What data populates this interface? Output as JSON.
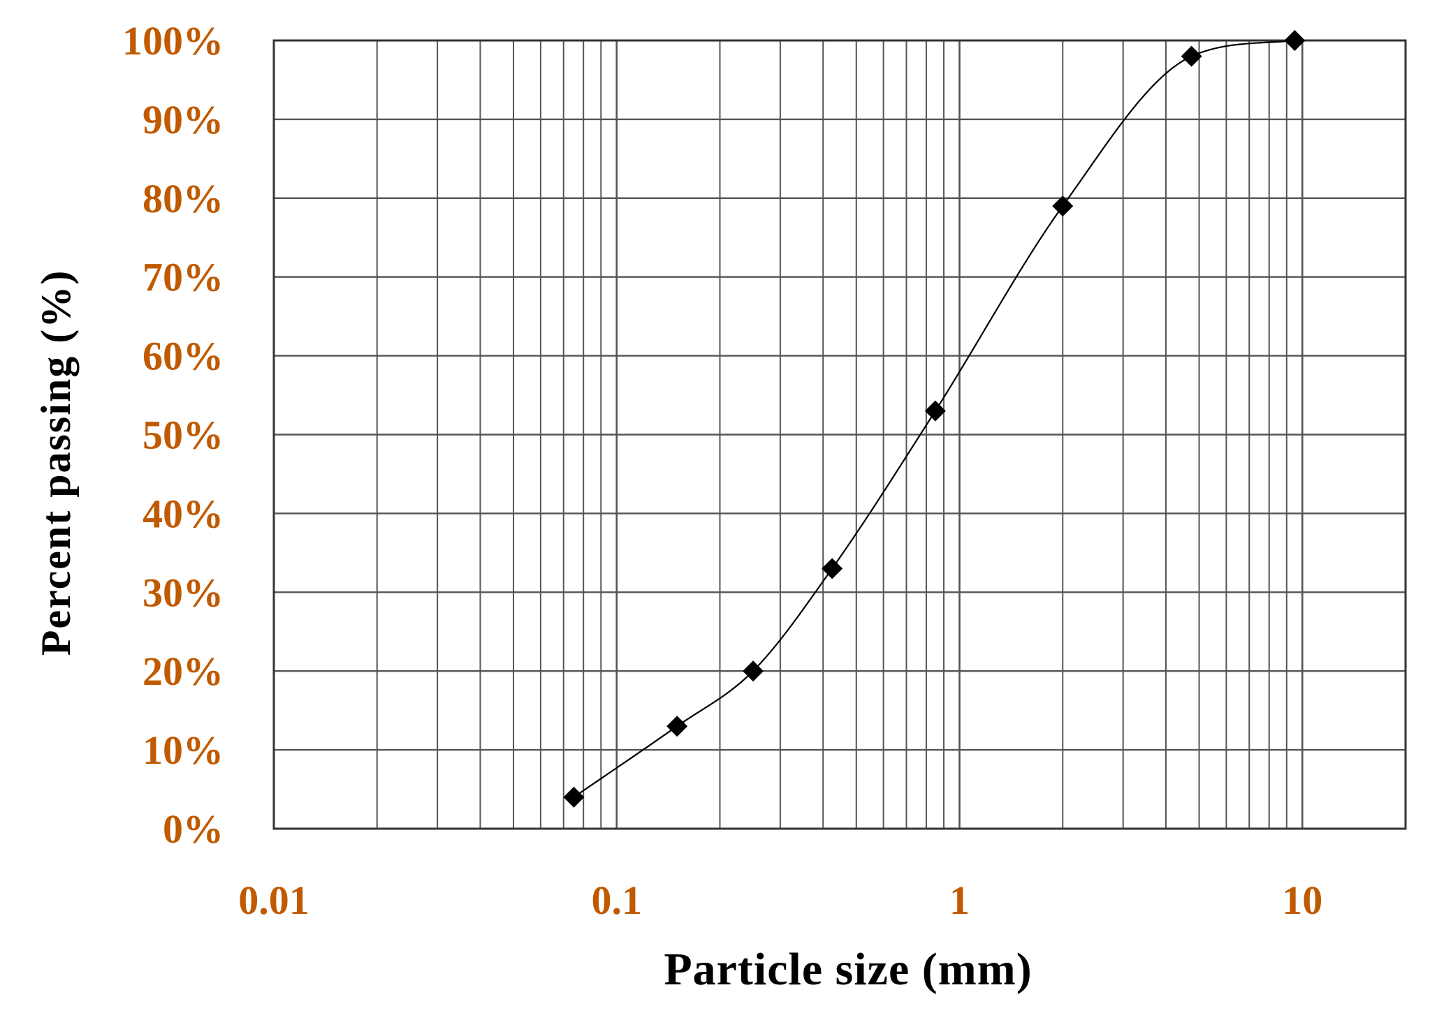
{
  "chart_data": {
    "type": "scatter",
    "title": "",
    "xlabel": "Particle size (mm)",
    "ylabel": "Percent passing (%)",
    "x_scale": "log",
    "xlim": [
      0.01,
      20
    ],
    "ylim": [
      0,
      100
    ],
    "x_tick_values": [
      0.01,
      0.1,
      1,
      10
    ],
    "x_tick_labels": [
      "0.01",
      "0.1",
      "1",
      "10"
    ],
    "y_tick_values": [
      0,
      10,
      20,
      30,
      40,
      50,
      60,
      70,
      80,
      90,
      100
    ],
    "y_tick_labels": [
      "0%",
      "10%",
      "20%",
      "30%",
      "40%",
      "50%",
      "60%",
      "70%",
      "80%",
      "90%",
      "100%"
    ],
    "grid": true,
    "legend": "none",
    "colors": {
      "tick_label": "#c05a00",
      "axis_label": "#000000",
      "grid": "#555555",
      "series": "#000000"
    },
    "series": [
      {
        "marker": "diamond",
        "line": "smooth",
        "x": [
          0.075,
          0.15,
          0.25,
          0.425,
          0.85,
          2.0,
          4.75,
          9.5
        ],
        "y": [
          4,
          13,
          20,
          33,
          53,
          79,
          98,
          100
        ]
      }
    ]
  }
}
